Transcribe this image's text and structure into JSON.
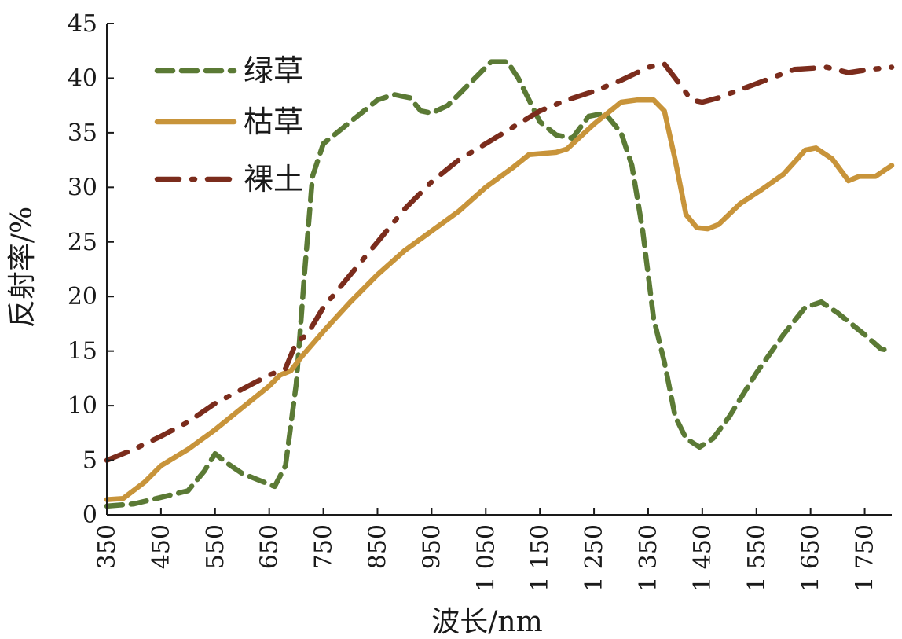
{
  "chart_data": {
    "type": "line",
    "title": "",
    "xlabel": "波长/nm",
    "ylabel": "反射率/%",
    "xlim": [
      350,
      1800
    ],
    "ylim": [
      0,
      45
    ],
    "grid": false,
    "legend": "top-left",
    "x_ticks": [
      350,
      450,
      550,
      650,
      750,
      850,
      950,
      1050,
      1150,
      1250,
      1350,
      1450,
      1550,
      1650,
      1750
    ],
    "x_tick_labels": [
      "350",
      "450",
      "550",
      "650",
      "750",
      "850",
      "950",
      "1 050",
      "1 150",
      "1 250",
      "1 350",
      "1 450",
      "1 550",
      "1 650",
      "1 750"
    ],
    "y_ticks": [
      0,
      5,
      10,
      15,
      20,
      25,
      30,
      35,
      40,
      45
    ],
    "y_tick_labels": [
      "0",
      "5",
      "10",
      "15",
      "20",
      "25",
      "30",
      "35",
      "40",
      "45"
    ],
    "series": [
      {
        "name": "绿草",
        "color": "#5b7a35",
        "style": "dashed",
        "points": [
          [
            350,
            0.8
          ],
          [
            400,
            1.0
          ],
          [
            450,
            1.6
          ],
          [
            500,
            2.2
          ],
          [
            530,
            4.0
          ],
          [
            550,
            5.6
          ],
          [
            570,
            4.8
          ],
          [
            600,
            3.8
          ],
          [
            630,
            3.2
          ],
          [
            660,
            2.6
          ],
          [
            680,
            4.5
          ],
          [
            700,
            12.0
          ],
          [
            715,
            22.0
          ],
          [
            730,
            31.0
          ],
          [
            750,
            34.0
          ],
          [
            800,
            36.0
          ],
          [
            850,
            38.0
          ],
          [
            880,
            38.5
          ],
          [
            910,
            38.2
          ],
          [
            930,
            37.0
          ],
          [
            950,
            36.8
          ],
          [
            980,
            37.5
          ],
          [
            1020,
            39.5
          ],
          [
            1060,
            41.5
          ],
          [
            1090,
            41.5
          ],
          [
            1110,
            40.0
          ],
          [
            1130,
            38.0
          ],
          [
            1150,
            36.0
          ],
          [
            1180,
            34.8
          ],
          [
            1210,
            34.5
          ],
          [
            1240,
            36.5
          ],
          [
            1270,
            36.8
          ],
          [
            1300,
            35.0
          ],
          [
            1320,
            32.0
          ],
          [
            1340,
            26.0
          ],
          [
            1360,
            18.0
          ],
          [
            1380,
            14.0
          ],
          [
            1400,
            9.0
          ],
          [
            1420,
            7.0
          ],
          [
            1445,
            6.2
          ],
          [
            1470,
            7.0
          ],
          [
            1500,
            9.0
          ],
          [
            1550,
            13.0
          ],
          [
            1600,
            16.5
          ],
          [
            1640,
            19.0
          ],
          [
            1670,
            19.5
          ],
          [
            1700,
            18.5
          ],
          [
            1750,
            16.5
          ],
          [
            1780,
            15.2
          ],
          [
            1800,
            15.0
          ]
        ]
      },
      {
        "name": "枯草",
        "color": "#c8943a",
        "style": "solid",
        "points": [
          [
            350,
            1.4
          ],
          [
            380,
            1.5
          ],
          [
            420,
            3.0
          ],
          [
            450,
            4.5
          ],
          [
            500,
            6.0
          ],
          [
            550,
            7.8
          ],
          [
            600,
            9.8
          ],
          [
            650,
            11.8
          ],
          [
            670,
            12.8
          ],
          [
            690,
            13.2
          ],
          [
            710,
            14.5
          ],
          [
            750,
            16.8
          ],
          [
            800,
            19.5
          ],
          [
            850,
            22.0
          ],
          [
            900,
            24.2
          ],
          [
            950,
            26.0
          ],
          [
            1000,
            27.8
          ],
          [
            1050,
            30.0
          ],
          [
            1100,
            31.8
          ],
          [
            1130,
            33.0
          ],
          [
            1180,
            33.2
          ],
          [
            1200,
            33.5
          ],
          [
            1250,
            35.8
          ],
          [
            1300,
            37.8
          ],
          [
            1330,
            38.0
          ],
          [
            1360,
            38.0
          ],
          [
            1380,
            37.0
          ],
          [
            1400,
            32.5
          ],
          [
            1420,
            27.5
          ],
          [
            1440,
            26.3
          ],
          [
            1460,
            26.2
          ],
          [
            1480,
            26.6
          ],
          [
            1520,
            28.5
          ],
          [
            1560,
            29.8
          ],
          [
            1600,
            31.2
          ],
          [
            1640,
            33.4
          ],
          [
            1660,
            33.6
          ],
          [
            1690,
            32.6
          ],
          [
            1720,
            30.6
          ],
          [
            1740,
            31.0
          ],
          [
            1770,
            31.0
          ],
          [
            1800,
            32.0
          ]
        ]
      },
      {
        "name": "裸土",
        "color": "#7b2c1c",
        "style": "dashdot",
        "points": [
          [
            350,
            5.0
          ],
          [
            400,
            6.0
          ],
          [
            450,
            7.2
          ],
          [
            500,
            8.5
          ],
          [
            550,
            10.2
          ],
          [
            600,
            11.5
          ],
          [
            650,
            12.8
          ],
          [
            680,
            13.4
          ],
          [
            700,
            15.8
          ],
          [
            720,
            16.5
          ],
          [
            750,
            19.0
          ],
          [
            800,
            22.0
          ],
          [
            850,
            25.0
          ],
          [
            900,
            28.0
          ],
          [
            950,
            30.5
          ],
          [
            1000,
            32.5
          ],
          [
            1050,
            34.0
          ],
          [
            1100,
            35.5
          ],
          [
            1150,
            37.0
          ],
          [
            1200,
            38.0
          ],
          [
            1250,
            38.8
          ],
          [
            1300,
            39.8
          ],
          [
            1350,
            41.0
          ],
          [
            1380,
            41.3
          ],
          [
            1400,
            40.0
          ],
          [
            1430,
            38.0
          ],
          [
            1450,
            37.8
          ],
          [
            1480,
            38.2
          ],
          [
            1550,
            39.5
          ],
          [
            1620,
            40.8
          ],
          [
            1680,
            41.0
          ],
          [
            1720,
            40.5
          ],
          [
            1760,
            40.8
          ],
          [
            1800,
            41.0
          ]
        ]
      }
    ]
  }
}
